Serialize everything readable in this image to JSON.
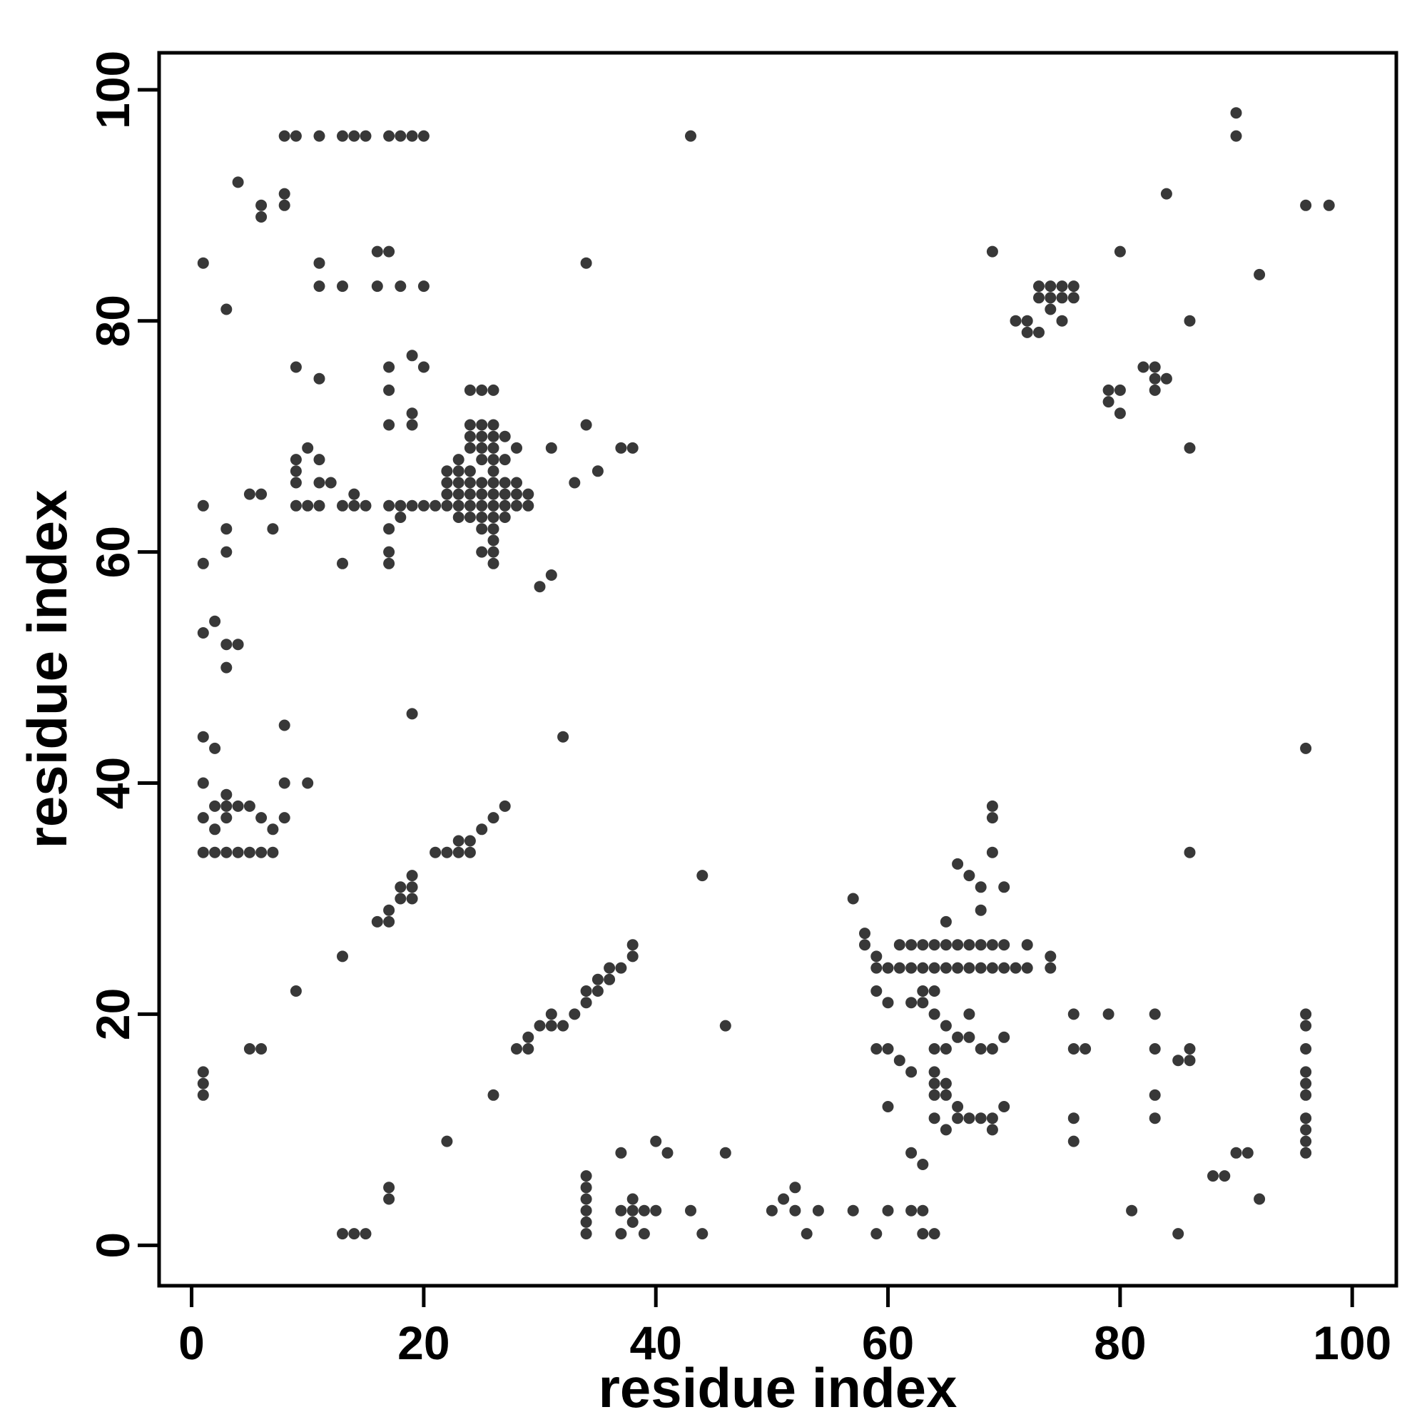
{
  "figure": {
    "background_color": "#ffffff",
    "frame_color": "#000000"
  },
  "chart_data": {
    "type": "scatter",
    "title": "",
    "xlabel": "residue index",
    "ylabel": "residue index",
    "xlim": [
      -2.8,
      103.8
    ],
    "ylim": [
      -3.5,
      103.2
    ],
    "xticks": [
      0,
      20,
      40,
      60,
      80,
      100
    ],
    "yticks": [
      0,
      20,
      40,
      60,
      80,
      100
    ],
    "grid": false,
    "legend": "none",
    "marker": {
      "shape": "circle",
      "color": "#000000",
      "opacity": 0.78
    },
    "points": [
      [
        8,
        96
      ],
      [
        9,
        96
      ],
      [
        11,
        96
      ],
      [
        13,
        96
      ],
      [
        14,
        96
      ],
      [
        15,
        96
      ],
      [
        17,
        96
      ],
      [
        18,
        96
      ],
      [
        19,
        96
      ],
      [
        20,
        96
      ],
      [
        43,
        96
      ],
      [
        4,
        92
      ],
      [
        6,
        90
      ],
      [
        6,
        89
      ],
      [
        8,
        91
      ],
      [
        8,
        90
      ],
      [
        1,
        85
      ],
      [
        3,
        81
      ],
      [
        11,
        85
      ],
      [
        16,
        86
      ],
      [
        17,
        86
      ],
      [
        34,
        85
      ],
      [
        11,
        83
      ],
      [
        13,
        83
      ],
      [
        16,
        83
      ],
      [
        18,
        83
      ],
      [
        20,
        83
      ],
      [
        9,
        76
      ],
      [
        11,
        75
      ],
      [
        17,
        76
      ],
      [
        17,
        74
      ],
      [
        19,
        77
      ],
      [
        20,
        76
      ],
      [
        24,
        74
      ],
      [
        25,
        74
      ],
      [
        26,
        74
      ],
      [
        9,
        64
      ],
      [
        9,
        66
      ],
      [
        9,
        67
      ],
      [
        9,
        68
      ],
      [
        10,
        64
      ],
      [
        10,
        69
      ],
      [
        11,
        64
      ],
      [
        11,
        66
      ],
      [
        11,
        68
      ],
      [
        12,
        66
      ],
      [
        13,
        59
      ],
      [
        13,
        64
      ],
      [
        14,
        64
      ],
      [
        14,
        65
      ],
      [
        15,
        64
      ],
      [
        17,
        59
      ],
      [
        17,
        60
      ],
      [
        17,
        62
      ],
      [
        17,
        64
      ],
      [
        17,
        71
      ],
      [
        18,
        63
      ],
      [
        18,
        64
      ],
      [
        19,
        64
      ],
      [
        19,
        71
      ],
      [
        19,
        72
      ],
      [
        20,
        64
      ],
      [
        21,
        64
      ],
      [
        22,
        64
      ],
      [
        22,
        65
      ],
      [
        22,
        66
      ],
      [
        22,
        67
      ],
      [
        23,
        63
      ],
      [
        23,
        64
      ],
      [
        23,
        65
      ],
      [
        23,
        66
      ],
      [
        23,
        67
      ],
      [
        23,
        68
      ],
      [
        24,
        63
      ],
      [
        24,
        64
      ],
      [
        24,
        65
      ],
      [
        24,
        66
      ],
      [
        24,
        67
      ],
      [
        24,
        69
      ],
      [
        24,
        70
      ],
      [
        24,
        71
      ],
      [
        25,
        60
      ],
      [
        25,
        62
      ],
      [
        25,
        63
      ],
      [
        25,
        64
      ],
      [
        25,
        65
      ],
      [
        25,
        66
      ],
      [
        25,
        68
      ],
      [
        25,
        69
      ],
      [
        25,
        70
      ],
      [
        25,
        71
      ],
      [
        26,
        59
      ],
      [
        26,
        60
      ],
      [
        26,
        61
      ],
      [
        26,
        62
      ],
      [
        26,
        63
      ],
      [
        26,
        64
      ],
      [
        26,
        65
      ],
      [
        26,
        66
      ],
      [
        26,
        67
      ],
      [
        26,
        68
      ],
      [
        26,
        69
      ],
      [
        26,
        70
      ],
      [
        26,
        71
      ],
      [
        27,
        63
      ],
      [
        27,
        64
      ],
      [
        27,
        65
      ],
      [
        27,
        66
      ],
      [
        27,
        68
      ],
      [
        27,
        70
      ],
      [
        28,
        64
      ],
      [
        28,
        65
      ],
      [
        28,
        66
      ],
      [
        28,
        69
      ],
      [
        29,
        64
      ],
      [
        29,
        65
      ],
      [
        30,
        57
      ],
      [
        31,
        58
      ],
      [
        31,
        69
      ],
      [
        33,
        66
      ],
      [
        34,
        71
      ],
      [
        35,
        67
      ],
      [
        37,
        69
      ],
      [
        38,
        69
      ],
      [
        1,
        64
      ],
      [
        1,
        59
      ],
      [
        3,
        62
      ],
      [
        3,
        60
      ],
      [
        5,
        65
      ],
      [
        6,
        65
      ],
      [
        7,
        62
      ],
      [
        1,
        53
      ],
      [
        2,
        54
      ],
      [
        3,
        52
      ],
      [
        4,
        52
      ],
      [
        3,
        50
      ],
      [
        1,
        44
      ],
      [
        2,
        43
      ],
      [
        8,
        45
      ],
      [
        1,
        40
      ],
      [
        8,
        40
      ],
      [
        10,
        40
      ],
      [
        1,
        37
      ],
      [
        2,
        36
      ],
      [
        2,
        38
      ],
      [
        3,
        37
      ],
      [
        3,
        38
      ],
      [
        3,
        39
      ],
      [
        4,
        38
      ],
      [
        5,
        38
      ],
      [
        6,
        37
      ],
      [
        7,
        36
      ],
      [
        8,
        37
      ],
      [
        1,
        34
      ],
      [
        2,
        34
      ],
      [
        3,
        34
      ],
      [
        4,
        34
      ],
      [
        5,
        34
      ],
      [
        6,
        34
      ],
      [
        7,
        34
      ],
      [
        5,
        17
      ],
      [
        6,
        17
      ],
      [
        9,
        22
      ],
      [
        13,
        25
      ],
      [
        1,
        15
      ],
      [
        1,
        14
      ],
      [
        1,
        13
      ],
      [
        19,
        46
      ],
      [
        16,
        28
      ],
      [
        17,
        28
      ],
      [
        17,
        29
      ],
      [
        18,
        30
      ],
      [
        18,
        31
      ],
      [
        19,
        30
      ],
      [
        19,
        31
      ],
      [
        19,
        32
      ],
      [
        21,
        34
      ],
      [
        22,
        34
      ],
      [
        23,
        34
      ],
      [
        23,
        35
      ],
      [
        24,
        34
      ],
      [
        24,
        35
      ],
      [
        25,
        36
      ],
      [
        26,
        37
      ],
      [
        27,
        38
      ],
      [
        28,
        17
      ],
      [
        29,
        17
      ],
      [
        29,
        18
      ],
      [
        30,
        19
      ],
      [
        31,
        19
      ],
      [
        31,
        20
      ],
      [
        32,
        19
      ],
      [
        33,
        20
      ],
      [
        34,
        21
      ],
      [
        34,
        22
      ],
      [
        35,
        22
      ],
      [
        35,
        23
      ],
      [
        36,
        23
      ],
      [
        36,
        24
      ],
      [
        37,
        24
      ],
      [
        38,
        25
      ],
      [
        38,
        26
      ],
      [
        26,
        13
      ],
      [
        22,
        9
      ],
      [
        17,
        5
      ],
      [
        17,
        4
      ],
      [
        13,
        1
      ],
      [
        14,
        1
      ],
      [
        15,
        1
      ],
      [
        34,
        1
      ],
      [
        34,
        2
      ],
      [
        34,
        3
      ],
      [
        34,
        4
      ],
      [
        34,
        5
      ],
      [
        34,
        6
      ],
      [
        37,
        1
      ],
      [
        37,
        3
      ],
      [
        38,
        2
      ],
      [
        38,
        3
      ],
      [
        38,
        4
      ],
      [
        39,
        1
      ],
      [
        39,
        3
      ],
      [
        40,
        3
      ],
      [
        37,
        8
      ],
      [
        40,
        9
      ],
      [
        41,
        8
      ],
      [
        43,
        3
      ],
      [
        44,
        1
      ],
      [
        46,
        8
      ],
      [
        46,
        19
      ],
      [
        44,
        32
      ],
      [
        32,
        44
      ],
      [
        50,
        3
      ],
      [
        51,
        4
      ],
      [
        52,
        3
      ],
      [
        52,
        5
      ],
      [
        53,
        1
      ],
      [
        54,
        3
      ],
      [
        57,
        3
      ],
      [
        59,
        1
      ],
      [
        60,
        3
      ],
      [
        62,
        3
      ],
      [
        63,
        3
      ],
      [
        63,
        1
      ],
      [
        64,
        1
      ],
      [
        57,
        30
      ],
      [
        58,
        27
      ],
      [
        58,
        26
      ],
      [
        59,
        25
      ],
      [
        59,
        24
      ],
      [
        61,
        26
      ],
      [
        62,
        26
      ],
      [
        63,
        26
      ],
      [
        64,
        26
      ],
      [
        65,
        26
      ],
      [
        66,
        26
      ],
      [
        67,
        26
      ],
      [
        68,
        26
      ],
      [
        69,
        26
      ],
      [
        70,
        26
      ],
      [
        72,
        26
      ],
      [
        60,
        24
      ],
      [
        61,
        24
      ],
      [
        62,
        24
      ],
      [
        63,
        24
      ],
      [
        64,
        24
      ],
      [
        65,
        24
      ],
      [
        66,
        24
      ],
      [
        67,
        24
      ],
      [
        68,
        24
      ],
      [
        69,
        24
      ],
      [
        70,
        24
      ],
      [
        71,
        24
      ],
      [
        72,
        24
      ],
      [
        74,
        25
      ],
      [
        74,
        24
      ],
      [
        65,
        28
      ],
      [
        66,
        33
      ],
      [
        67,
        32
      ],
      [
        68,
        29
      ],
      [
        68,
        31
      ],
      [
        70,
        31
      ],
      [
        69,
        34
      ],
      [
        69,
        37
      ],
      [
        69,
        38
      ],
      [
        59,
        22
      ],
      [
        60,
        21
      ],
      [
        62,
        21
      ],
      [
        63,
        21
      ],
      [
        63,
        22
      ],
      [
        64,
        22
      ],
      [
        64,
        20
      ],
      [
        64,
        17
      ],
      [
        64,
        15
      ],
      [
        64,
        14
      ],
      [
        64,
        13
      ],
      [
        64,
        11
      ],
      [
        65,
        19
      ],
      [
        65,
        17
      ],
      [
        65,
        14
      ],
      [
        65,
        13
      ],
      [
        65,
        10
      ],
      [
        66,
        18
      ],
      [
        66,
        12
      ],
      [
        66,
        11
      ],
      [
        67,
        20
      ],
      [
        67,
        18
      ],
      [
        67,
        11
      ],
      [
        68,
        17
      ],
      [
        68,
        11
      ],
      [
        69,
        17
      ],
      [
        69,
        11
      ],
      [
        69,
        10
      ],
      [
        70,
        18
      ],
      [
        70,
        12
      ],
      [
        61,
        16
      ],
      [
        62,
        15
      ],
      [
        59,
        17
      ],
      [
        60,
        17
      ],
      [
        60,
        12
      ],
      [
        62,
        8
      ],
      [
        63,
        7
      ],
      [
        76,
        20
      ],
      [
        76,
        17
      ],
      [
        77,
        17
      ],
      [
        79,
        20
      ],
      [
        76,
        11
      ],
      [
        76,
        9
      ],
      [
        83,
        20
      ],
      [
        83,
        17
      ],
      [
        83,
        13
      ],
      [
        83,
        11
      ],
      [
        81,
        3
      ],
      [
        85,
        1
      ],
      [
        85,
        16
      ],
      [
        86,
        16
      ],
      [
        86,
        17
      ],
      [
        86,
        34
      ],
      [
        88,
        6
      ],
      [
        89,
        6
      ],
      [
        90,
        8
      ],
      [
        91,
        8
      ],
      [
        92,
        4
      ],
      [
        96,
        43
      ],
      [
        96,
        8
      ],
      [
        96,
        9
      ],
      [
        96,
        10
      ],
      [
        96,
        11
      ],
      [
        96,
        13
      ],
      [
        96,
        14
      ],
      [
        96,
        15
      ],
      [
        96,
        17
      ],
      [
        96,
        19
      ],
      [
        96,
        20
      ],
      [
        71,
        80
      ],
      [
        72,
        79
      ],
      [
        72,
        80
      ],
      [
        73,
        79
      ],
      [
        73,
        82
      ],
      [
        73,
        83
      ],
      [
        74,
        81
      ],
      [
        74,
        82
      ],
      [
        74,
        83
      ],
      [
        75,
        80
      ],
      [
        75,
        82
      ],
      [
        75,
        83
      ],
      [
        76,
        82
      ],
      [
        76,
        83
      ],
      [
        79,
        73
      ],
      [
        79,
        74
      ],
      [
        80,
        72
      ],
      [
        80,
        74
      ],
      [
        82,
        76
      ],
      [
        83,
        74
      ],
      [
        83,
        75
      ],
      [
        83,
        76
      ],
      [
        84,
        75
      ],
      [
        86,
        69
      ],
      [
        86,
        80
      ],
      [
        84,
        91
      ],
      [
        92,
        84
      ],
      [
        90,
        96
      ],
      [
        90,
        98
      ],
      [
        96,
        90
      ],
      [
        98,
        90
      ],
      [
        69,
        86
      ],
      [
        80,
        86
      ]
    ]
  }
}
